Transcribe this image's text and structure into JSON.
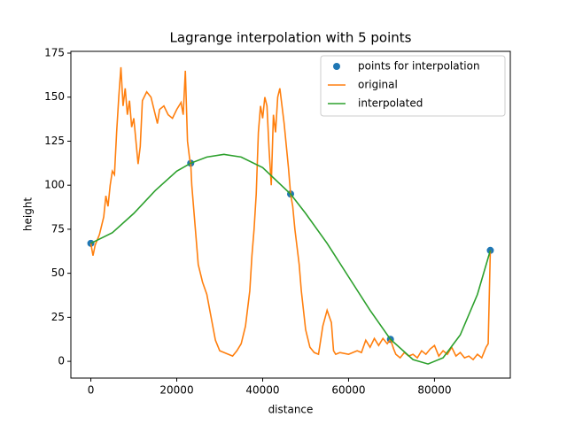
{
  "chart_data": {
    "type": "line",
    "title": "Lagrange interpolation with 5 points",
    "x_label": "distance",
    "y_label": "height",
    "xlim": [
      -4650,
      97650
    ],
    "ylim": [
      -9.5,
      176
    ],
    "xticks": [
      0,
      20000,
      40000,
      60000,
      80000
    ],
    "yticks": [
      0,
      25,
      50,
      75,
      100,
      125,
      150,
      175
    ],
    "legend": "upper right",
    "series": [
      {
        "name": "points for interpolation",
        "color": "#1f77b4",
        "mode": "markers",
        "x": [
          0,
          23250,
          46500,
          69750,
          93000
        ],
        "values": [
          67,
          112.5,
          95,
          12.5,
          63
        ]
      },
      {
        "name": "original",
        "color": "#ff7f0e",
        "mode": "line",
        "x": [
          0,
          500,
          1000,
          2000,
          3000,
          3500,
          4000,
          4500,
          5000,
          5500,
          6000,
          6500,
          7000,
          7500,
          8000,
          8500,
          9000,
          9500,
          10000,
          10500,
          11000,
          11500,
          12000,
          13000,
          14000,
          15000,
          15500,
          16000,
          17000,
          18000,
          19000,
          20000,
          21000,
          21500,
          22000,
          22500,
          23000,
          23250,
          23500,
          24000,
          25000,
          26000,
          27000,
          28000,
          29000,
          30000,
          31000,
          32000,
          33000,
          34000,
          35000,
          36000,
          37000,
          37500,
          38000,
          38500,
          39000,
          39500,
          40000,
          40500,
          41000,
          41500,
          42000,
          42500,
          43000,
          43500,
          44000,
          44500,
          45000,
          46000,
          46500,
          47000,
          47500,
          48000,
          48500,
          49000,
          50000,
          51000,
          52000,
          53000,
          54000,
          55000,
          56000,
          56500,
          57000,
          58000,
          60000,
          62000,
          63000,
          64000,
          65000,
          66000,
          67000,
          68000,
          69000,
          69750,
          70500,
          71000,
          72000,
          73000,
          74000,
          75000,
          76000,
          77000,
          78000,
          79000,
          80000,
          81000,
          82000,
          83000,
          84000,
          85000,
          86000,
          87000,
          88000,
          89000,
          90000,
          91000,
          91500,
          92000,
          92500,
          93000
        ],
        "values": [
          67,
          60,
          66,
          72,
          82,
          94,
          88,
          100,
          108,
          106,
          130,
          150,
          167,
          145,
          155,
          140,
          148,
          133,
          138,
          125,
          112,
          122,
          148,
          153,
          150,
          140,
          135,
          143,
          145,
          140,
          138,
          143,
          147,
          140,
          165,
          125,
          115,
          112.5,
          100,
          85,
          55,
          45,
          38,
          25,
          12,
          6,
          5,
          4,
          3,
          6,
          10,
          20,
          40,
          60,
          75,
          95,
          130,
          145,
          138,
          150,
          145,
          120,
          100,
          140,
          130,
          150,
          155,
          145,
          135,
          110,
          95,
          88,
          75,
          65,
          55,
          40,
          18,
          8,
          5,
          4,
          20,
          29,
          22,
          6,
          4,
          5,
          4,
          6,
          5,
          12,
          8,
          13,
          9,
          13,
          10,
          12.5,
          7,
          4,
          2,
          5,
          3,
          4,
          2,
          6,
          4,
          7,
          9,
          3,
          6,
          4,
          8,
          3,
          5,
          2,
          3,
          1,
          4,
          2,
          5,
          8,
          10,
          63
        ]
      },
      {
        "name": "interpolated",
        "color": "#2ca02c",
        "mode": "line",
        "x": [
          0,
          5000,
          10000,
          15000,
          20000,
          23250,
          27000,
          31000,
          35000,
          40000,
          46500,
          50000,
          55000,
          60000,
          65000,
          69750,
          75000,
          78500,
          82000,
          86000,
          90000,
          93000
        ],
        "values": [
          67,
          73,
          84,
          97,
          108,
          112.5,
          116,
          117.5,
          116,
          110,
          95,
          84,
          67,
          48,
          29,
          12.5,
          1,
          -1.5,
          2,
          15,
          38,
          63
        ]
      }
    ]
  }
}
